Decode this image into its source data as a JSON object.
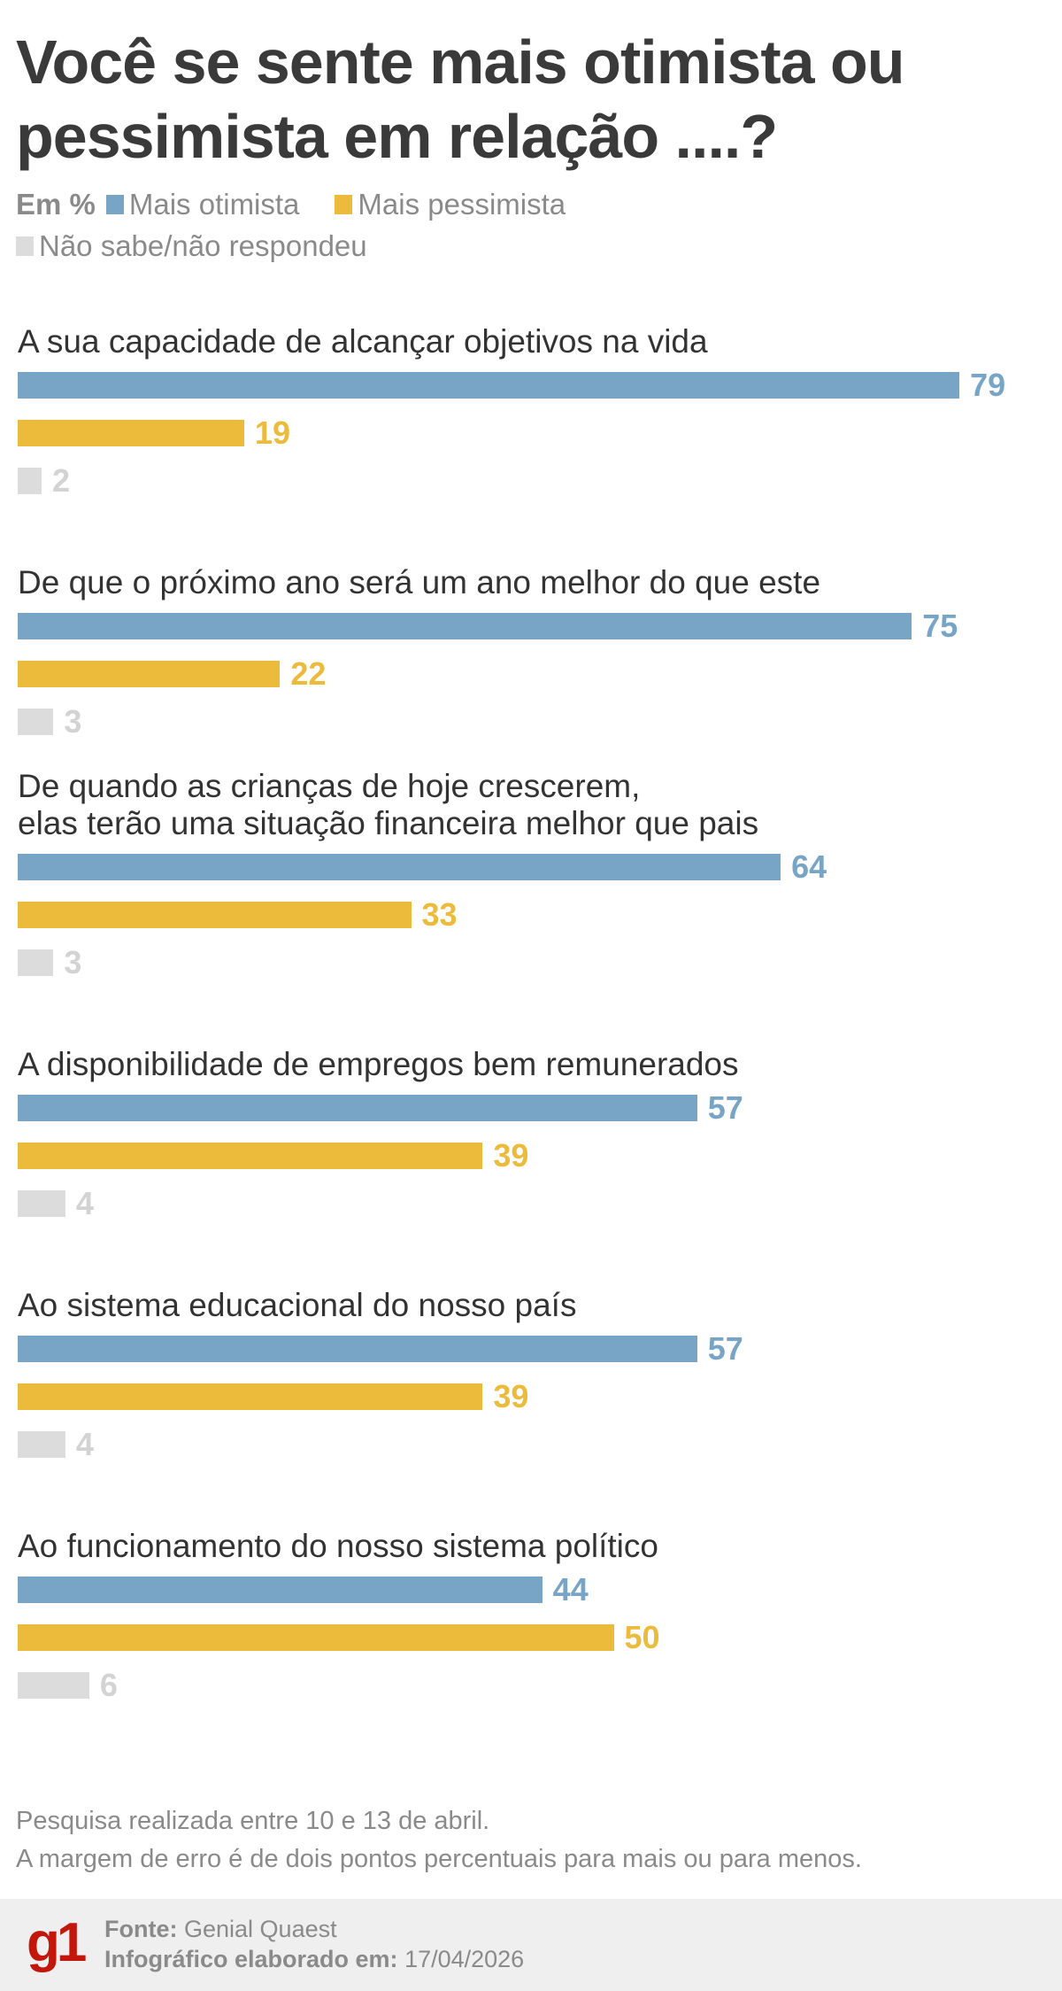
{
  "chart_data": {
    "type": "bar",
    "orientation": "horizontal",
    "title": "Você se sente mais otimista ou pessimista em relação ....?",
    "unit_label": "Em %",
    "categories": [
      [
        "A sua capacidade de alcançar objetivos na vida"
      ],
      [
        "De que o próximo ano será um ano melhor do que este"
      ],
      [
        "De quando as crianças de hoje crescerem,",
        "elas terão uma situação financeira melhor que pais"
      ],
      [
        "A disponibilidade de empregos bem remunerados"
      ],
      [
        "Ao sistema educacional do nosso país"
      ],
      [
        "Ao funcionamento do nosso sistema político"
      ]
    ],
    "series": [
      {
        "name": "Mais otimista",
        "color": "#78a4c6",
        "values": [
          79,
          75,
          64,
          57,
          57,
          44
        ]
      },
      {
        "name": "Mais pessimista",
        "color": "#ecbb3c",
        "values": [
          19,
          22,
          33,
          39,
          39,
          50
        ]
      },
      {
        "name": "Não sabe/não respondeu",
        "color": "#dcdcdc",
        "label_color": "#d3d3d3",
        "values": [
          2,
          3,
          3,
          4,
          4,
          6
        ]
      }
    ],
    "xlim": [
      0,
      100
    ],
    "grid": false,
    "legend_placement": "top-left",
    "data_labels": true
  },
  "notes": [
    "Pesquisa realizada entre 10 e 13 de abril.",
    "A margem de erro é de dois pontos percentuais para mais ou para menos."
  ],
  "footer": {
    "logo": "g1",
    "source_label": "Fonte:",
    "source": "Genial Quaest",
    "date_label": "Infográfico elaborado em:",
    "date": "17/04/2026"
  }
}
